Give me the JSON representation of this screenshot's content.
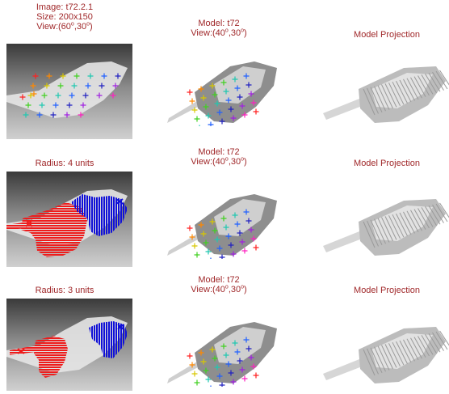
{
  "row1": {
    "image_caption": [
      "Image: t72.2.1",
      "Size: 200x150"
    ],
    "image_view": {
      "prefix": "View:(",
      "a": "60",
      "mid": ",30",
      "suffix": ")",
      "deg": "o"
    },
    "model_caption": "Model: t72",
    "model_view": {
      "prefix": "View:(",
      "a": "40",
      "mid": ",30",
      "suffix": ")",
      "deg": "o"
    },
    "projection_caption": "Model Projection"
  },
  "row2": {
    "radius_caption": "Radius: 4 units",
    "model_caption": "Model: t72",
    "model_view": {
      "prefix": "View:(",
      "a": "40",
      "mid": ",30",
      "suffix": ")",
      "deg": "o"
    },
    "projection_caption": "Model Projection"
  },
  "row3": {
    "radius_caption": "Radius: 3 units",
    "model_caption": "Model: t72",
    "model_view": {
      "prefix": "View:(",
      "a": "40",
      "mid": ",30",
      "suffix": ")",
      "deg": "o"
    },
    "projection_caption": "Model Projection"
  },
  "colors": {
    "caption": "#a0282a",
    "region_red": "#ee1c1c",
    "region_blue": "#1010d8",
    "marker_palette": [
      "#ff2020",
      "#ff8800",
      "#d8c800",
      "#40d020",
      "#20c8b0",
      "#2060ff",
      "#2020c0",
      "#a020e0",
      "#ff20c0"
    ]
  }
}
